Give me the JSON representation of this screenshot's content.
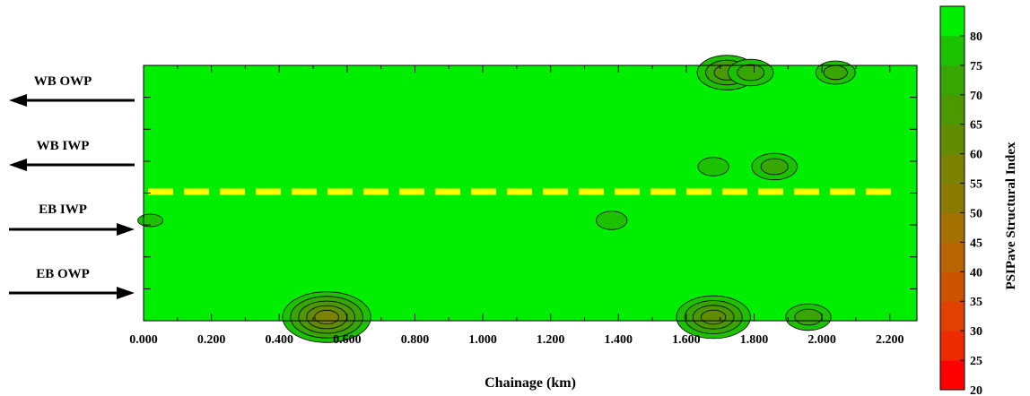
{
  "chart_data": {
    "type": "heatmap",
    "title": "",
    "xlabel": "Chainage (km)",
    "ylabel": "",
    "xlim": [
      0.0,
      2.28
    ],
    "x_ticks": [
      "0.000",
      "0.200",
      "0.400",
      "0.600",
      "0.800",
      "1.000",
      "1.200",
      "1.400",
      "1.600",
      "1.800",
      "2.000",
      "2.200"
    ],
    "x_tick_values": [
      0.0,
      0.2,
      0.4,
      0.6,
      0.8,
      1.0,
      1.2,
      1.4,
      1.6,
      1.8,
      2.0,
      2.2
    ],
    "lanes": [
      {
        "label": "WB OWP",
        "direction": "left"
      },
      {
        "label": "WB IWP",
        "direction": "left"
      },
      {
        "label": "EB IWP",
        "direction": "right"
      },
      {
        "label": "EB OWP",
        "direction": "right"
      }
    ],
    "centerline_color": "#ffff00",
    "background_value": 82,
    "colorbar": {
      "label": "PSIPave Structural Index",
      "range": [
        20,
        85
      ],
      "ticks": [
        20,
        25,
        30,
        35,
        40,
        45,
        50,
        55,
        60,
        65,
        70,
        75,
        80
      ],
      "colors": [
        "#ff0000",
        "#ee2a00",
        "#e04000",
        "#cc5400",
        "#b86400",
        "#a47000",
        "#8a7a00",
        "#7a8200",
        "#628c00",
        "#4c9800",
        "#38a600",
        "#1cc200",
        "#00ee00"
      ]
    },
    "anomalies": [
      {
        "x": 1.72,
        "lane": "WB OWP",
        "min_value": 65
      },
      {
        "x": 1.79,
        "lane": "WB OWP",
        "min_value": 70
      },
      {
        "x": 2.04,
        "lane": "WB OWP",
        "min_value": 72
      },
      {
        "x": 1.68,
        "lane": "WB IWP",
        "min_value": 75
      },
      {
        "x": 1.86,
        "lane": "WB IWP",
        "min_value": 70
      },
      {
        "x": 0.02,
        "lane": "EB IWP",
        "min_value": 75
      },
      {
        "x": 1.38,
        "lane": "EB IWP",
        "min_value": 75
      },
      {
        "x": 0.54,
        "lane": "EB OWP",
        "min_value": 55
      },
      {
        "x": 1.68,
        "lane": "EB OWP",
        "min_value": 60
      },
      {
        "x": 1.96,
        "lane": "EB OWP",
        "min_value": 70
      }
    ]
  }
}
